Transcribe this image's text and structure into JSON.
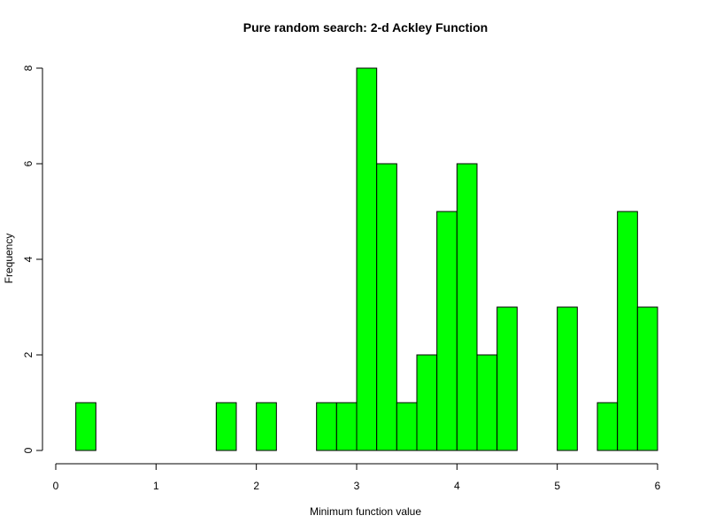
{
  "chart_data": {
    "type": "bar",
    "title": "Pure random search: 2-d Ackley Function",
    "xlabel": "Minimum function value",
    "ylabel": "Frequency",
    "xlim": [
      0,
      6
    ],
    "ylim": [
      0,
      8
    ],
    "x_ticks": [
      "0",
      "1",
      "2",
      "3",
      "4",
      "5",
      "6"
    ],
    "y_ticks": [
      "0",
      "2",
      "4",
      "6",
      "8"
    ],
    "bin_width": 0.2,
    "bins": [
      {
        "x0": 0.2,
        "x1": 0.4,
        "count": 1
      },
      {
        "x0": 1.6,
        "x1": 1.8,
        "count": 1
      },
      {
        "x0": 2.0,
        "x1": 2.2,
        "count": 1
      },
      {
        "x0": 2.6,
        "x1": 2.8,
        "count": 1
      },
      {
        "x0": 2.8,
        "x1": 3.0,
        "count": 1
      },
      {
        "x0": 3.0,
        "x1": 3.2,
        "count": 8
      },
      {
        "x0": 3.2,
        "x1": 3.4,
        "count": 6
      },
      {
        "x0": 3.4,
        "x1": 3.6,
        "count": 1
      },
      {
        "x0": 3.6,
        "x1": 3.8,
        "count": 2
      },
      {
        "x0": 3.8,
        "x1": 4.0,
        "count": 5
      },
      {
        "x0": 4.0,
        "x1": 4.2,
        "count": 6
      },
      {
        "x0": 4.2,
        "x1": 4.4,
        "count": 2
      },
      {
        "x0": 4.4,
        "x1": 4.6,
        "count": 3
      },
      {
        "x0": 5.0,
        "x1": 5.2,
        "count": 3
      },
      {
        "x0": 5.4,
        "x1": 5.6,
        "count": 1
      },
      {
        "x0": 5.6,
        "x1": 5.8,
        "count": 5
      },
      {
        "x0": 5.8,
        "x1": 6.0,
        "count": 3
      }
    ],
    "bar_color": "#00FF00",
    "grid": false,
    "legend": "none"
  }
}
